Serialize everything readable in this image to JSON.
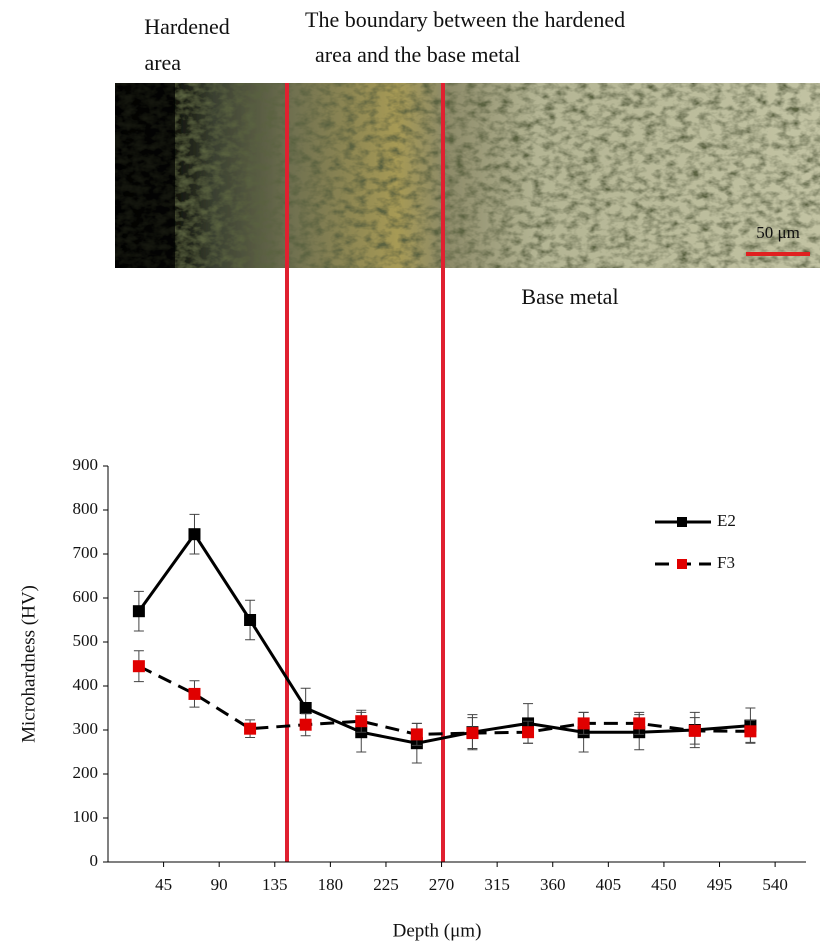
{
  "image_labels": {
    "left": "Hardened area",
    "boundary": [
      "The boundary between the hardened",
      "area and the base metal"
    ],
    "scale_bar": "50 μm",
    "base": "Base metal"
  },
  "chart_data": {
    "type": "line",
    "x_label": "Depth (μm)",
    "y_label": "Microhardness (HV)",
    "x": [
      25,
      70,
      115,
      160,
      205,
      250,
      295,
      340,
      385,
      430,
      475,
      520
    ],
    "xlim": [
      0,
      565
    ],
    "xticks": [
      45,
      90,
      135,
      180,
      225,
      270,
      315,
      360,
      405,
      450,
      495,
      540
    ],
    "ylim": [
      0,
      900
    ],
    "yticks": [
      0,
      100,
      200,
      300,
      400,
      500,
      600,
      700,
      800,
      900
    ],
    "legend": "upper right",
    "series": [
      {
        "name": "E2",
        "color": "#000000",
        "marker_color": "#000000",
        "dash": false,
        "values": [
          570,
          745,
          550,
          350,
          295,
          270,
          295,
          315,
          295,
          295,
          300,
          310
        ],
        "errors": [
          45,
          45,
          45,
          45,
          45,
          45,
          40,
          45,
          45,
          40,
          40,
          40
        ]
      },
      {
        "name": "F3",
        "color": "#000000",
        "marker_color": "#e00000",
        "dash": true,
        "values": [
          445,
          382,
          303,
          312,
          320,
          290,
          293,
          295,
          315,
          315,
          298,
          297
        ],
        "errors": [
          35,
          30,
          20,
          25,
          25,
          25,
          35,
          25,
          25,
          25,
          30,
          25
        ]
      }
    ]
  }
}
